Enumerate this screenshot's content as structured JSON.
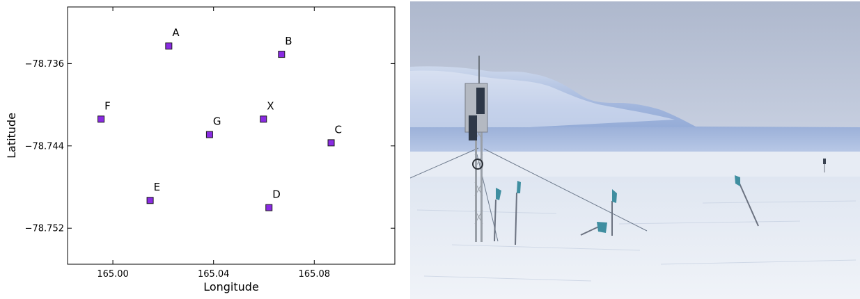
{
  "chart_data": {
    "type": "scatter",
    "title": "",
    "xlabel": "Longitude",
    "ylabel": "Latitude",
    "xlim": [
      164.982,
      165.112
    ],
    "ylim": [
      -78.7555,
      -78.7305
    ],
    "xticks": [
      {
        "value": 165.0,
        "label": "165.00"
      },
      {
        "value": 165.04,
        "label": "165.04"
      },
      {
        "value": 165.08,
        "label": "165.08"
      }
    ],
    "yticks": [
      {
        "value": -78.736,
        "label": "−78.736"
      },
      {
        "value": -78.744,
        "label": "−78.744"
      },
      {
        "value": -78.752,
        "label": "−78.752"
      }
    ],
    "grid": false,
    "marker": "square",
    "marker_color": "#8a2be2",
    "points": [
      {
        "label": "A",
        "x": 165.0222,
        "y": -78.7343
      },
      {
        "label": "B",
        "x": 165.067,
        "y": -78.7351
      },
      {
        "label": "F",
        "x": 164.9953,
        "y": -78.7414
      },
      {
        "label": "X",
        "x": 165.0598,
        "y": -78.7414
      },
      {
        "label": "G",
        "x": 165.0384,
        "y": -78.7429
      },
      {
        "label": "C",
        "x": 165.0867,
        "y": -78.7437
      },
      {
        "label": "E",
        "x": 165.0148,
        "y": -78.7493
      },
      {
        "label": "D",
        "x": 165.062,
        "y": -78.75
      }
    ]
  },
  "photo": {
    "subject": "meteorological-tower-on-ice-shelf",
    "colors": {
      "sky": "#c9d6e8",
      "mountain": "#8ea8d4",
      "snow": "#e8eef6"
    }
  }
}
